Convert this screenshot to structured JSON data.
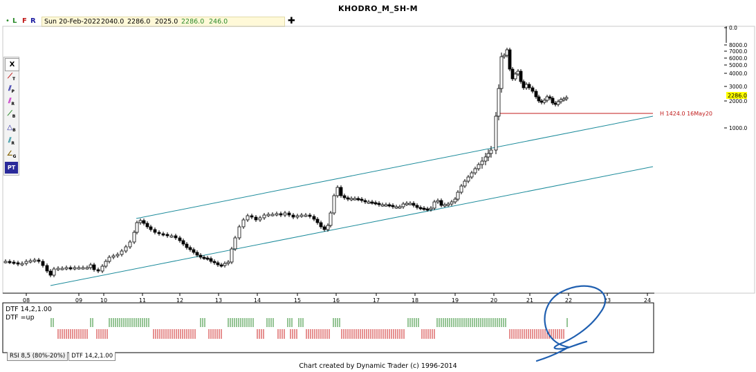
{
  "window": {
    "title": "KHODRO_M_SH-M"
  },
  "infobar": {
    "flags": [
      "L",
      "F",
      "R"
    ],
    "date": "Sun 20-Feb-2022",
    "open": "2040.0",
    "high": "2286.0",
    "low": "2025.0",
    "close": "2286.0",
    "change": "246.0",
    "crosshair_icon": "plus-icon"
  },
  "toolbox": {
    "items": [
      "X",
      "T",
      "P",
      "R",
      "B",
      "B",
      "R",
      "G",
      "PT"
    ]
  },
  "annotations": {
    "high_marker": "H 1424.0 16May20",
    "price_tag": "2286.0"
  },
  "indicator": {
    "name": "DTF 14,2,1.00",
    "state": "DTF =up"
  },
  "tabs": [
    "RSI 8,5 (80%-20%)",
    "DTF 14,2,1.00"
  ],
  "footer": "Chart created by Dynamic Trader  (c) 1996-2014",
  "colors": {
    "channel": "#1a8a9a",
    "high_line": "#c01818",
    "dtf_up": "#2a8a2a",
    "dtf_down": "#cc2222",
    "handwriting": "#1f5fb0",
    "price_tag_bg": "#ffff00"
  },
  "chart_data": {
    "type": "candlestick",
    "title": "KHODRO_M_SH-M",
    "scale": "log",
    "x_ticks": [
      "08",
      "09",
      "10",
      "11",
      "12",
      "13",
      "14",
      "15",
      "16",
      "17",
      "18",
      "19",
      "20",
      "21",
      "22",
      "23",
      "24"
    ],
    "y_ticks": [
      "0.0",
      "8000.0",
      "7000.0",
      "6000.0",
      "5000.0",
      "4000.0",
      "3000.0",
      "2000.0",
      "1000.0"
    ],
    "last_price": 2286.0,
    "high_marker": {
      "label": "H 1424.0 16May20",
      "value": 1424.0
    },
    "series": [
      {
        "name": "KHODRO_M_SH-M",
        "style": "candles"
      }
    ],
    "channel_lines": 2,
    "indicator_panel": {
      "name": "DTF 14,2,1.00",
      "state": "up",
      "colors": [
        "up",
        "down"
      ]
    }
  }
}
